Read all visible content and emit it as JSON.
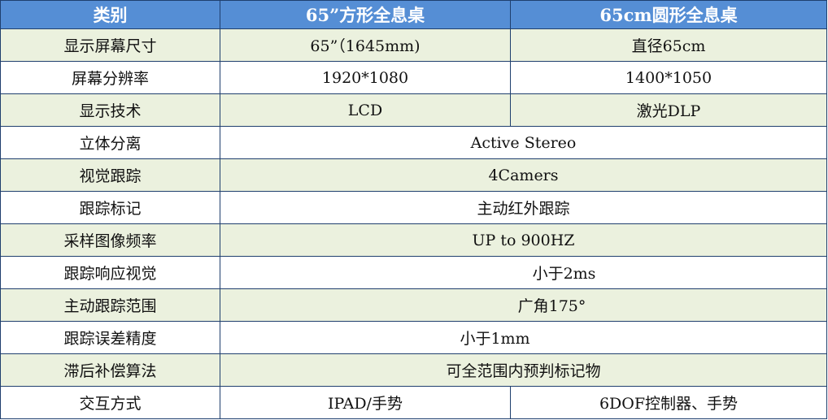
{
  "header": [
    "类别",
    "65”方形全息桌",
    "65cm圆形全息桌"
  ],
  "rows": [
    {
      "label": "显示屏幕尺寸",
      "a": "65”（1645mm)",
      "b": "直径65cm"
    },
    {
      "label": "屏幕分辨率",
      "a": "1920*1080",
      "b": "1400*1050"
    },
    {
      "label": "显示技术",
      "a": "LCD",
      "b": "激光DLP"
    },
    {
      "label": "立体分离",
      "merged": "Active Stereo"
    },
    {
      "label": "视觉跟踪",
      "merged": "4Camers"
    },
    {
      "label": "跟踪标记",
      "merged": "主动红外跟踪"
    },
    {
      "label": "采样图像频率",
      "merged": "UP to 900HZ"
    },
    {
      "label": "跟踪响应视觉",
      "merged": "小于2ms"
    },
    {
      "label": "主动跟踪范围",
      "merged": "广角175°"
    },
    {
      "label": "跟踪误差精度",
      "merged": "小于1mm"
    },
    {
      "label": "滞后补偿算法",
      "merged": "可全范围内预判标记物"
    },
    {
      "label": "交互方式",
      "a": "IPAD/手势",
      "b": "6DOF控制器、手势"
    }
  ],
  "colors": {
    "header_bg": "#558ed5",
    "alt_row_bg": "#ebf1de",
    "border": "#1f3f6e"
  }
}
